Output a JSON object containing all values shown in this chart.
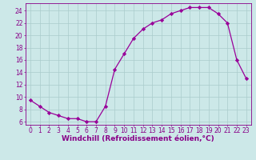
{
  "x": [
    0,
    1,
    2,
    3,
    4,
    5,
    6,
    7,
    8,
    9,
    10,
    11,
    12,
    13,
    14,
    15,
    16,
    17,
    18,
    19,
    20,
    21,
    22,
    23
  ],
  "y": [
    9.5,
    8.5,
    7.5,
    7.0,
    6.5,
    6.5,
    6.0,
    6.0,
    8.5,
    14.5,
    17.0,
    19.5,
    21.0,
    22.0,
    22.5,
    23.5,
    24.0,
    24.5,
    24.5,
    24.5,
    23.5,
    22.0,
    16.0,
    13.0
  ],
  "line_color": "#990099",
  "marker": "D",
  "markersize": 2.2,
  "linewidth": 0.9,
  "bg_color": "#cce8e8",
  "grid_color": "#aacccc",
  "xlabel": "Windchill (Refroidissement éolien,°C)",
  "xlim": [
    -0.5,
    23.5
  ],
  "ylim": [
    5.5,
    25.2
  ],
  "yticks": [
    6,
    8,
    10,
    12,
    14,
    16,
    18,
    20,
    22,
    24
  ],
  "xtick_labels": [
    "0",
    "1",
    "2",
    "3",
    "4",
    "5",
    "6",
    "7",
    "8",
    "9",
    "10",
    "11",
    "12",
    "13",
    "14",
    "15",
    "16",
    "17",
    "18",
    "19",
    "20",
    "21",
    "22",
    "23"
  ],
  "xlabel_fontsize": 6.5,
  "tick_fontsize": 5.5,
  "tick_color": "#880088",
  "label_color": "#880088",
  "spine_color": "#880088"
}
